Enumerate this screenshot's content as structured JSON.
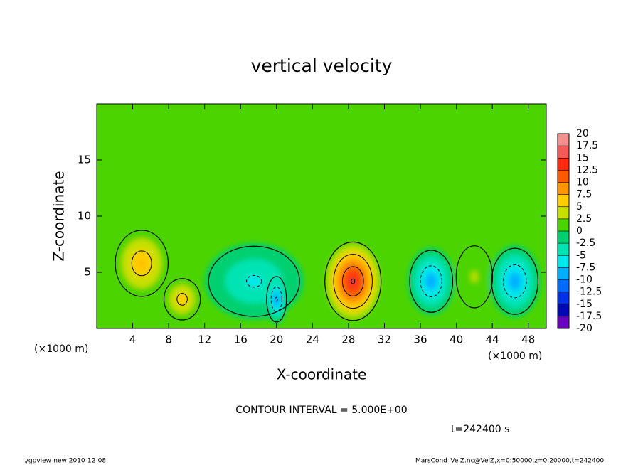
{
  "chart_data": {
    "type": "contour",
    "title": "vertical velocity",
    "x_label": "X-coordinate",
    "y_label": "Z-coordinate",
    "unit_label": "(×1000 m)",
    "annotation": "CONTOUR INTERVAL = 5.000E+00",
    "time_label": "t=242400 s",
    "footer_left": "./gpview-new  2010-12-08",
    "footer_right": "MarsCond_VelZ.nc@VelZ,x=0:50000,z=0:20000,t=242400",
    "xlim": [
      0,
      50
    ],
    "ylim": [
      0,
      20
    ],
    "xticks": [
      4,
      8,
      12,
      16,
      20,
      24,
      28,
      32,
      36,
      40,
      44,
      48
    ],
    "yticks": [
      5,
      10,
      15
    ],
    "levels": [
      20,
      17.5,
      15,
      12.5,
      10,
      7.5,
      5,
      2.5,
      0,
      -2.5,
      -5,
      -7.5,
      -10,
      -12.5,
      -15,
      -17.5,
      -20
    ],
    "level_colors": [
      "#f49090",
      "#f45a5a",
      "#ff2a10",
      "#ff5a00",
      "#ff9600",
      "#ffcc00",
      "#c8e000",
      "#4cd400",
      "#00d070",
      "#00e4b4",
      "#00e8ec",
      "#00b0ff",
      "#006cff",
      "#0030e8",
      "#0008b4",
      "#6a00c0"
    ],
    "field": [
      {
        "x": 5,
        "z": 5.8,
        "rx": 3.2,
        "rz": 3.2,
        "peak": 8
      },
      {
        "x": 9.5,
        "z": 2.6,
        "rx": 2.2,
        "rz": 2.0,
        "peak": 7
      },
      {
        "x": 17.5,
        "z": 4.2,
        "rx": 5.5,
        "rz": 3.4,
        "peak": -6
      },
      {
        "x": 20,
        "z": 2.6,
        "rx": 1.2,
        "rz": 2.2,
        "peak": -11
      },
      {
        "x": 28.5,
        "z": 4.2,
        "rx": 3.4,
        "rz": 3.8,
        "peak": 16
      },
      {
        "x": 37.2,
        "z": 4.2,
        "rx": 2.6,
        "rz": 3.0,
        "peak": -10
      },
      {
        "x": 42,
        "z": 4.6,
        "rx": 2.2,
        "rz": 3.0,
        "peak": 3
      },
      {
        "x": 46.5,
        "z": 4.2,
        "rx": 2.8,
        "rz": 3.2,
        "peak": -10
      }
    ]
  }
}
